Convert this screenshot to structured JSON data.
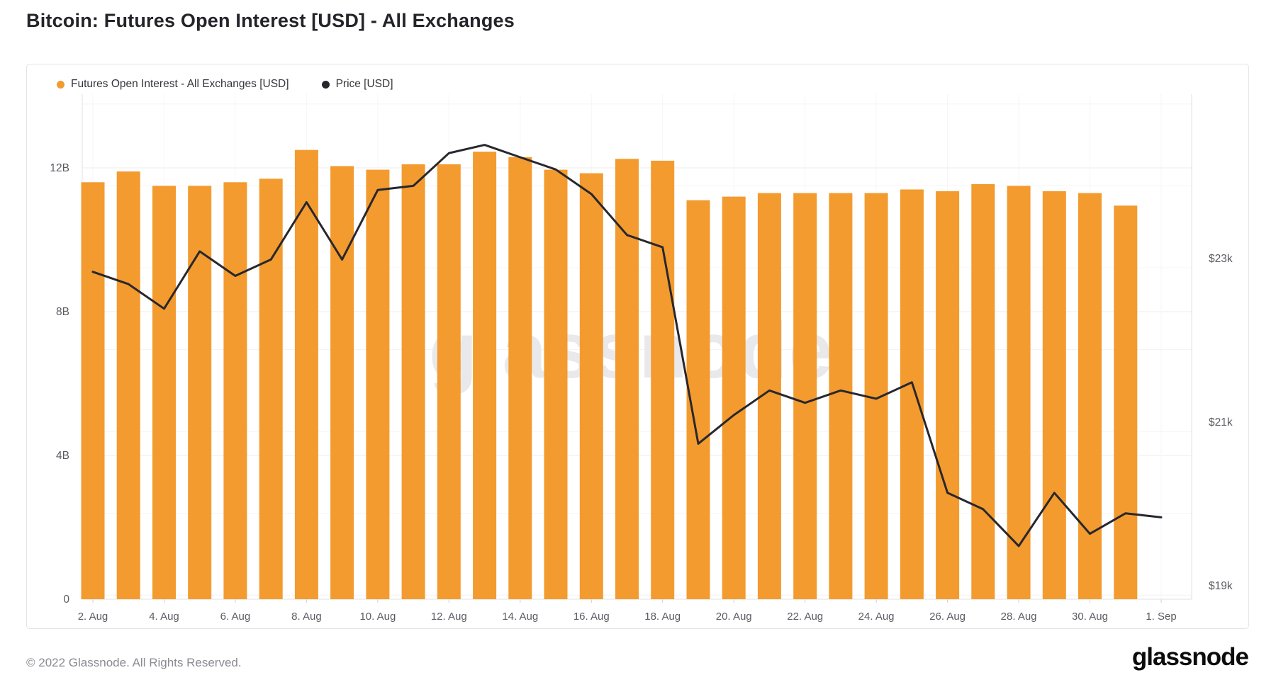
{
  "page": {
    "title": "Bitcoin: Futures Open Interest [USD] - All Exchanges"
  },
  "legend": {
    "items": [
      {
        "label": "Futures Open Interest - All Exchanges [USD]",
        "color": "#F39B2E"
      },
      {
        "label": "Price [USD]",
        "color": "#28272E"
      }
    ]
  },
  "watermark": "glassnode",
  "footer": {
    "copyright": "© 2022 Glassnode. All Rights Reserved.",
    "brand": "glassnode"
  },
  "colors": {
    "bar": "#F39B2E",
    "line": "#28272E",
    "axis_text": "#5b5b63",
    "grid_major": "#ececef",
    "grid_minor": "#f4f4f6",
    "axis_line": "#e2e2e6",
    "tick": "#cfcfd4",
    "watermark": "#e9e9ec"
  },
  "chart_data": {
    "type": "bar",
    "title": "Bitcoin: Futures Open Interest [USD] - All Exchanges",
    "categories": [
      "2. Aug",
      "3. Aug",
      "4. Aug",
      "5. Aug",
      "6. Aug",
      "7. Aug",
      "8. Aug",
      "9. Aug",
      "10. Aug",
      "11. Aug",
      "12. Aug",
      "13. Aug",
      "14. Aug",
      "15. Aug",
      "16. Aug",
      "17. Aug",
      "18. Aug",
      "19. Aug",
      "20. Aug",
      "21. Aug",
      "22. Aug",
      "23. Aug",
      "24. Aug",
      "25. Aug",
      "26. Aug",
      "27. Aug",
      "28. Aug",
      "29. Aug",
      "30. Aug",
      "31. Aug",
      "1. Sep"
    ],
    "series": [
      {
        "name": "Futures Open Interest - All Exchanges [USD]",
        "type": "bar",
        "axis": "left",
        "unit": "billions USD",
        "color": "#F39B2E",
        "values": [
          11.6,
          11.9,
          11.5,
          11.5,
          11.6,
          11.7,
          12.5,
          12.05,
          11.95,
          12.1,
          12.1,
          12.45,
          12.3,
          11.95,
          11.85,
          12.25,
          12.2,
          11.1,
          11.2,
          11.3,
          11.3,
          11.3,
          11.3,
          11.4,
          11.35,
          11.55,
          11.5,
          11.35,
          11.3,
          10.95,
          null
        ]
      },
      {
        "name": "Price [USD]",
        "type": "line",
        "axis": "right",
        "unit": "thousands USD",
        "color": "#28272E",
        "values": [
          22.95,
          22.8,
          22.5,
          23.2,
          22.9,
          23.1,
          23.8,
          23.1,
          23.95,
          24.0,
          24.4,
          24.5,
          24.35,
          24.2,
          23.9,
          23.4,
          23.25,
          20.85,
          21.2,
          21.5,
          21.35,
          21.5,
          21.4,
          21.6,
          20.25,
          20.05,
          19.6,
          20.25,
          19.75,
          20.0,
          19.95
        ]
      }
    ],
    "left_axis": {
      "ticks": [
        "0",
        "4B",
        "8B",
        "12B"
      ],
      "tick_values": [
        0,
        4,
        8,
        12
      ],
      "min": 0,
      "max": 14.05
    },
    "right_axis": {
      "ticks": [
        "$19k",
        "$21k",
        "$23k"
      ],
      "tick_values": [
        19,
        21,
        23
      ],
      "min": 18.95,
      "max": 25.12,
      "grid_step": 1
    },
    "x_ticks": [
      "2. Aug",
      "4. Aug",
      "6. Aug",
      "8. Aug",
      "10. Aug",
      "12. Aug",
      "14. Aug",
      "16. Aug",
      "18. Aug",
      "20. Aug",
      "22. Aug",
      "24. Aug",
      "26. Aug",
      "28. Aug",
      "30. Aug",
      "1. Sep"
    ],
    "x_tick_every": 2,
    "grid": true,
    "legend_position": "top-left"
  }
}
